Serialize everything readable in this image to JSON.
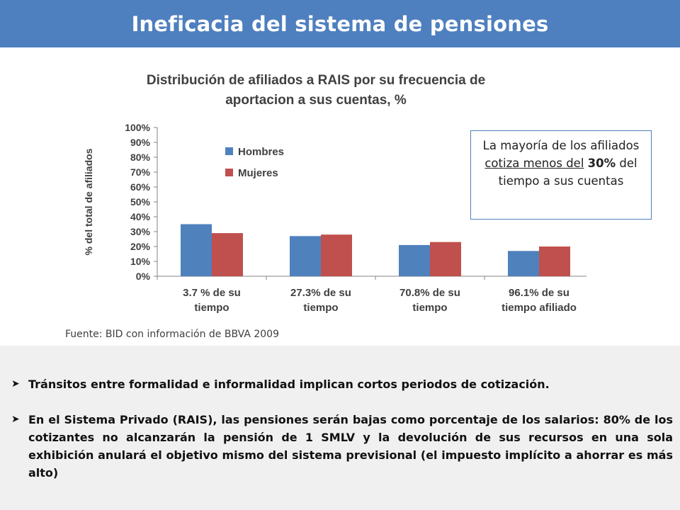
{
  "slide": {
    "title": "Ineficacia del sistema de pensiones"
  },
  "callout": {
    "part1": "La mayoría de los afiliados",
    "underlined": "cotiza menos del",
    "bold": "30%",
    "part2": "del tiempo a sus cuentas"
  },
  "source": "Fuente: BID con información de BBVA 2009",
  "bullets": [
    {
      "icon": "arrow-bullet-icon",
      "text": "Tránsitos entre formalidad e informalidad implican cortos periodos de cotización."
    },
    {
      "icon": "arrow-bullet-icon",
      "text": "En el Sistema Privado (RAIS), las pensiones serán bajas como porcentaje de los salarios: 80% de los cotizantes no alcanzarán la pensión de 1 SMLV y la devolución de sus recursos en una sola exhibición anulará el objetivo mismo del sistema previsional (el impuesto implícito a ahorrar es más alto)"
    }
  ],
  "chart_data": {
    "type": "bar",
    "title_lines": [
      "Distribución de afiliados a RAIS por su frecuencia de",
      "aportacion a sus cuentas, %"
    ],
    "ylabel": "% del total de afiliados",
    "xlabel": "",
    "ylim": [
      0,
      100
    ],
    "yticks": [
      "0%",
      "10%",
      "20%",
      "30%",
      "40%",
      "50%",
      "60%",
      "70%",
      "80%",
      "90%",
      "100%"
    ],
    "categories": [
      [
        "3.7 % de su",
        "tiempo"
      ],
      [
        "27.3% de su",
        "tiempo"
      ],
      [
        "70.8% de su",
        "tiempo"
      ],
      [
        "96.1% de su",
        "tiempo afiliado"
      ]
    ],
    "series": [
      {
        "name": "Hombres",
        "color": "#4f81bd",
        "values": [
          35,
          27,
          21,
          17
        ]
      },
      {
        "name": "Mujeres",
        "color": "#c0504d",
        "values": [
          29,
          28,
          23,
          20
        ]
      }
    ],
    "legend_position": "top-left",
    "grid": false
  }
}
